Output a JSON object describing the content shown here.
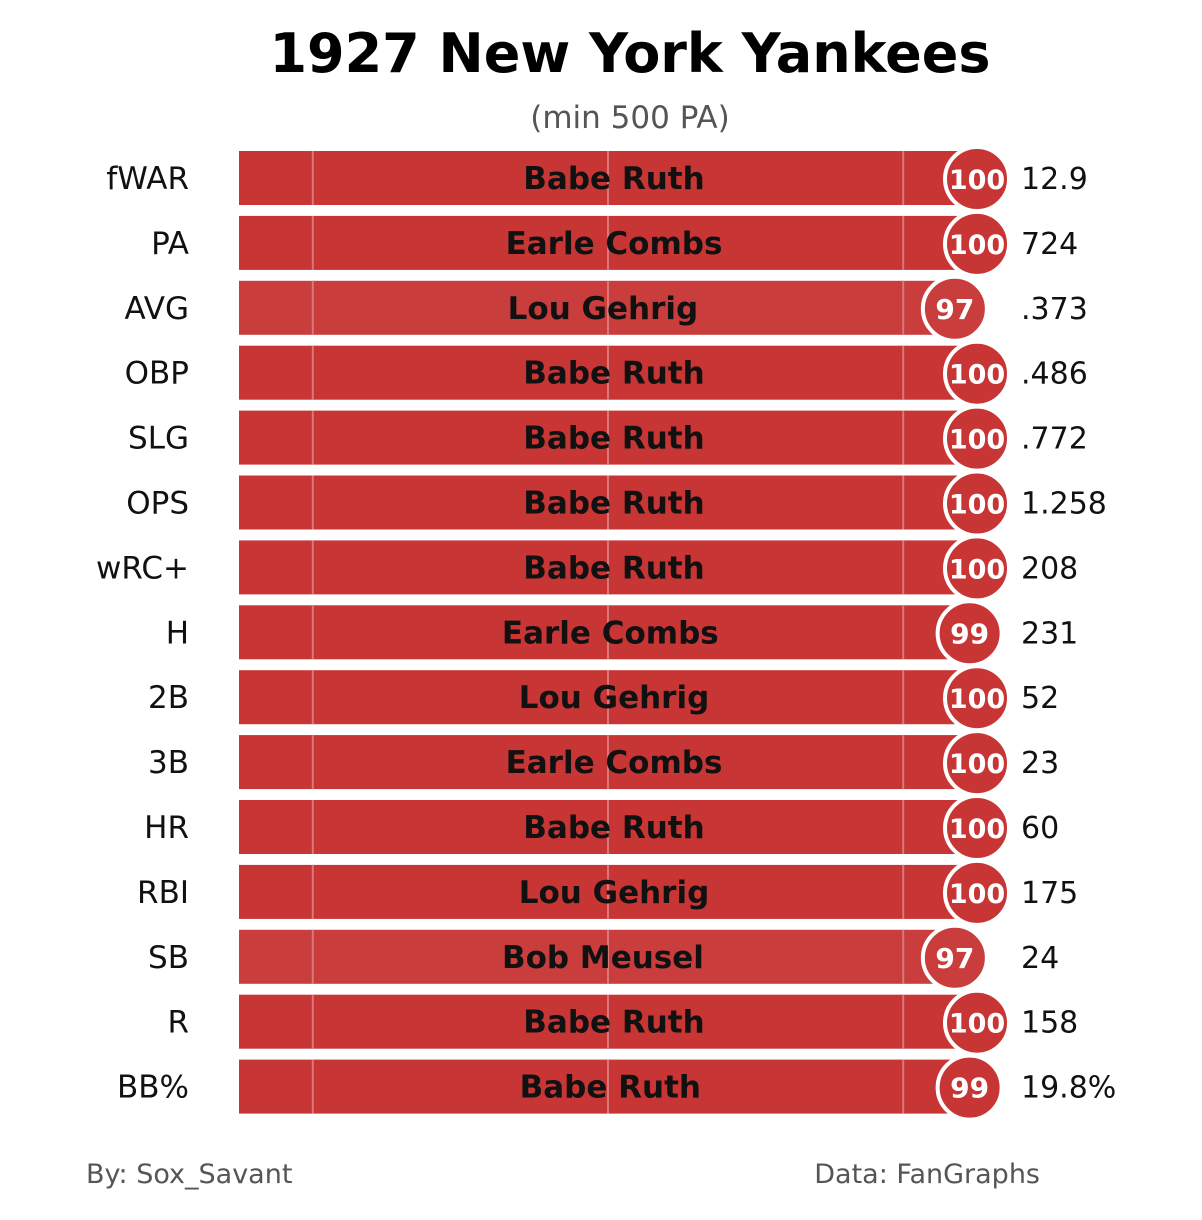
{
  "chart_data": {
    "type": "bar",
    "title": "1927 New York Yankees",
    "subtitle": "(min 500 PA)",
    "xlim": [
      0,
      100
    ],
    "grid_lines": [
      10,
      50,
      90
    ],
    "categories": [
      "fWAR",
      "PA",
      "AVG",
      "OBP",
      "SLG",
      "OPS",
      "wRC+",
      "H",
      "2B",
      "3B",
      "HR",
      "RBI",
      "SB",
      "R",
      "BB%"
    ],
    "players": [
      "Babe Ruth",
      "Earle Combs",
      "Lou Gehrig",
      "Babe Ruth",
      "Babe Ruth",
      "Babe Ruth",
      "Babe Ruth",
      "Earle Combs",
      "Lou Gehrig",
      "Earle Combs",
      "Babe Ruth",
      "Lou Gehrig",
      "Bob Meusel",
      "Babe Ruth",
      "Babe Ruth"
    ],
    "percentiles": [
      100,
      100,
      97,
      100,
      100,
      100,
      100,
      99,
      100,
      100,
      100,
      100,
      97,
      100,
      99
    ],
    "stat_values": [
      "12.9",
      "724",
      ".373",
      ".486",
      ".772",
      "1.258",
      "208",
      "231",
      "52",
      "23",
      "60",
      "175",
      "24",
      "158",
      "19.8%"
    ],
    "colors": {
      "bar_100": "#c73534",
      "bar_97": "#c93d3d",
      "grid": "#d9777a"
    }
  },
  "footer": {
    "author": "By: Sox_Savant",
    "source": "Data: FanGraphs"
  }
}
